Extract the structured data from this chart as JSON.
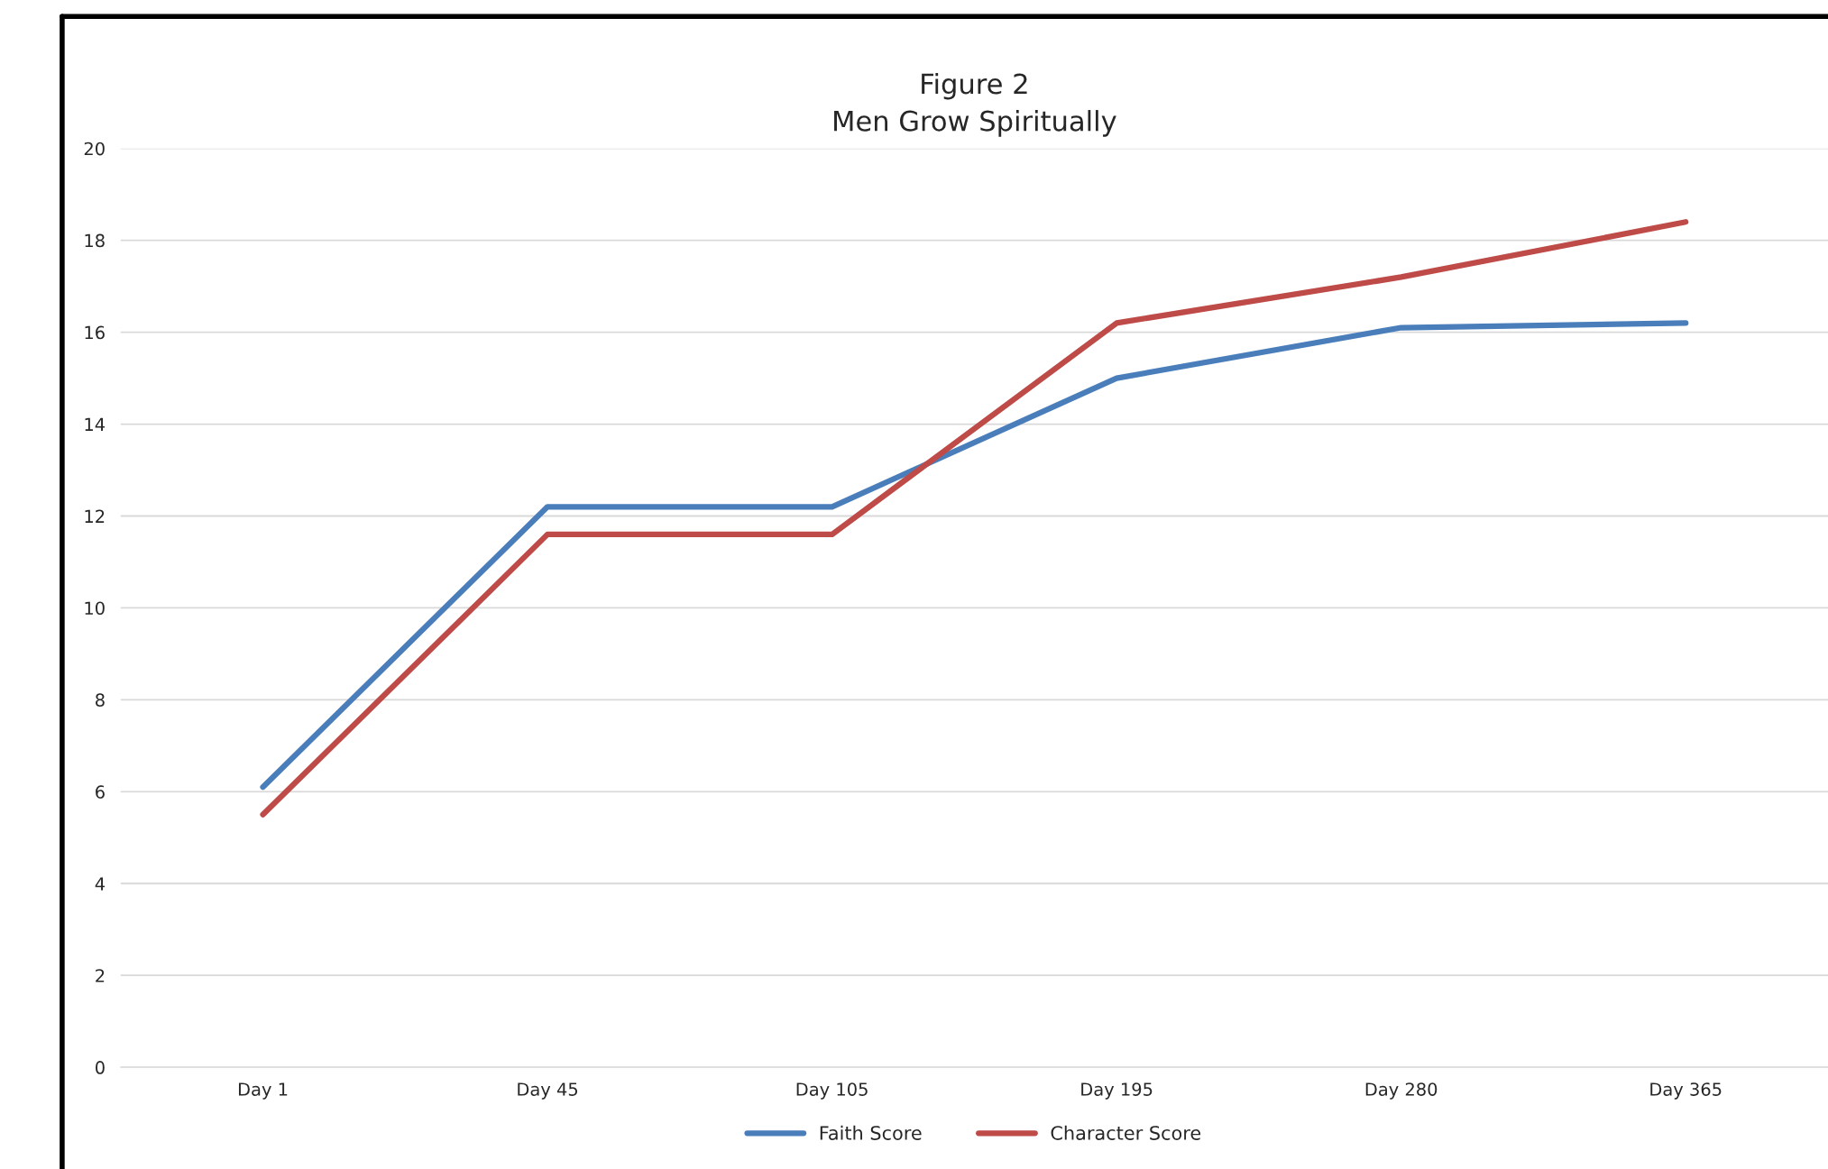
{
  "chart_data": {
    "type": "line",
    "title": "Figure 2\nMen Grow Spiritually",
    "categories": [
      "Day 1",
      "Day 45",
      "Day 105",
      "Day 195",
      "Day 280",
      "Day 365"
    ],
    "series": [
      {
        "name": "Faith Score",
        "color": "#4a7ebb",
        "values": [
          6.1,
          12.2,
          12.2,
          15.0,
          16.1,
          16.2
        ]
      },
      {
        "name": "Character Score",
        "color": "#be4b48",
        "values": [
          5.5,
          11.6,
          11.6,
          16.2,
          17.2,
          18.4
        ]
      }
    ],
    "ylim": [
      0,
      20
    ],
    "yticks": [
      0,
      2,
      4,
      6,
      8,
      10,
      12,
      14,
      16,
      18,
      20
    ],
    "grid": "y",
    "legend": "bottom",
    "marker": "none",
    "line_style": "solid"
  }
}
